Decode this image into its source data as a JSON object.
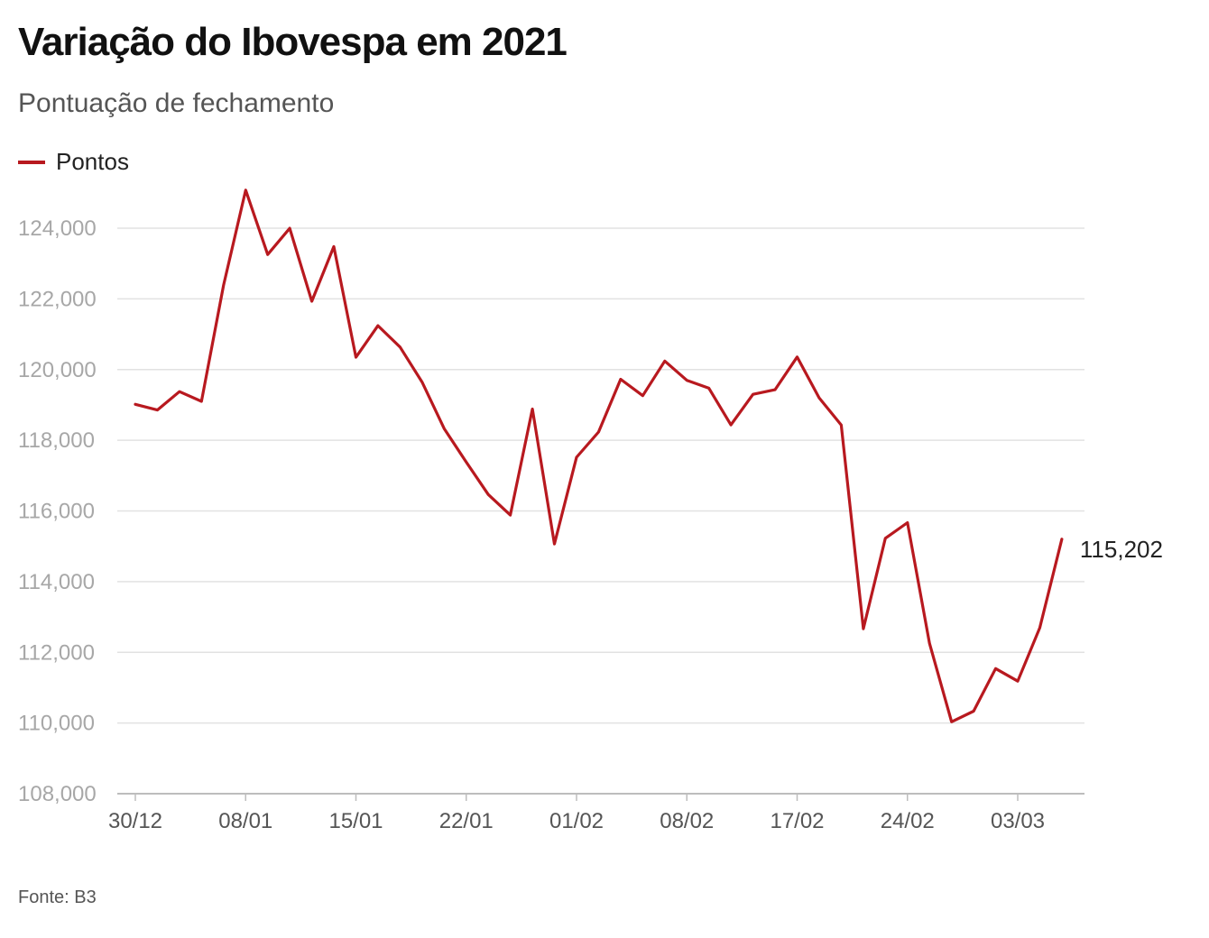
{
  "title": "Variação do Ibovespa em 2021",
  "subtitle": "Pontuação de fechamento",
  "source": "Fonte: B3",
  "chart_data": {
    "type": "line",
    "title": "Variação do Ibovespa em 2021",
    "subtitle": "Pontuação de fechamento",
    "xlabel": "",
    "ylabel": "",
    "ylim": [
      108000,
      125000
    ],
    "yticks": [
      108000,
      110000,
      112000,
      114000,
      116000,
      118000,
      120000,
      122000,
      124000
    ],
    "ytick_labels": [
      "108,000",
      "110,000",
      "112,000",
      "114,000",
      "116,000",
      "118,000",
      "120,000",
      "122,000",
      "124,000"
    ],
    "xtick_labels": [
      "30/12",
      "08/01",
      "15/01",
      "22/01",
      "01/02",
      "08/02",
      "17/02",
      "24/02",
      "03/03"
    ],
    "xtick_positions": [
      0,
      5,
      10,
      15,
      20,
      25,
      30,
      35,
      40
    ],
    "grid": true,
    "legend_position": "top-left",
    "end_label": "115,202",
    "series": [
      {
        "name": "Pontos",
        "color": "#b8191f",
        "x": [
          "30/12",
          "04/01",
          "05/01",
          "06/01",
          "07/01",
          "08/01",
          "11/01",
          "12/01",
          "13/01",
          "14/01",
          "15/01",
          "18/01",
          "19/01",
          "20/01",
          "21/01",
          "22/01",
          "26/01",
          "27/01",
          "28/01",
          "29/01",
          "01/02",
          "02/02",
          "03/02",
          "04/02",
          "05/02",
          "08/02",
          "09/02",
          "10/02",
          "11/02",
          "12/02",
          "17/02",
          "18/02",
          "19/02",
          "22/02",
          "23/02",
          "24/02",
          "25/02",
          "26/02",
          "01/03",
          "02/03",
          "03/03",
          "04/03",
          "05/03"
        ],
        "values": [
          119017,
          118855,
          119376,
          119100,
          122386,
          125077,
          123255,
          123998,
          121933,
          123480,
          120348,
          121242,
          120636,
          119646,
          118329,
          117381,
          116464,
          115882,
          118883,
          115067,
          117518,
          118234,
          119725,
          119261,
          120240,
          119696,
          119472,
          118435,
          119300,
          119429,
          120356,
          119199,
          118430,
          112668,
          115227,
          115668,
          112256,
          110035,
          110335,
          111540,
          111184,
          112690,
          115202
        ]
      }
    ]
  }
}
